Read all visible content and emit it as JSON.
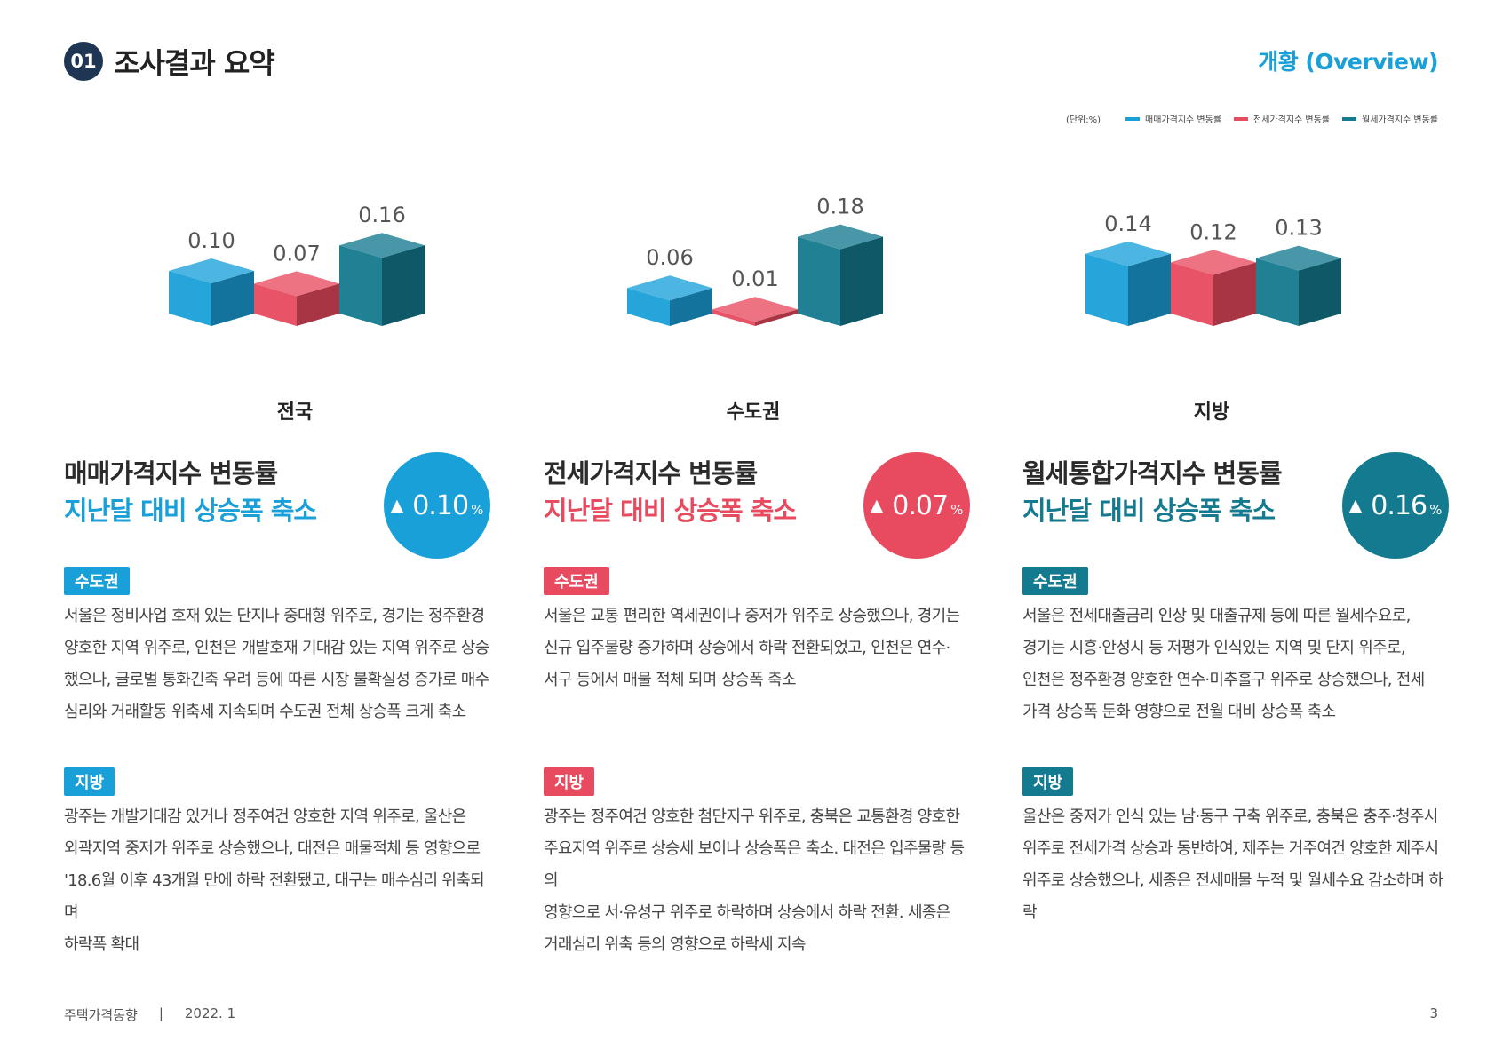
{
  "header": {
    "number": "01",
    "title": "조사결과 요약",
    "overview": "개황 (Overview)"
  },
  "legend": {
    "unit": "(단위:%)",
    "items": [
      {
        "label": "매매가격지수 변동률",
        "color": "#1aa0d8"
      },
      {
        "label": "전세가격지수 변동률",
        "color": "#e84a5f"
      },
      {
        "label": "월세가격지수 변동률",
        "color": "#147a8f"
      }
    ]
  },
  "chart_data": [
    {
      "type": "bar",
      "region": "전국",
      "categories": [
        "매매",
        "전세",
        "월세"
      ],
      "values": [
        0.1,
        0.07,
        0.16
      ],
      "labels": [
        "0.10",
        "0.07",
        "0.16"
      ],
      "colors": [
        "#1aa0d8",
        "#e84a5f",
        "#147a8f"
      ]
    },
    {
      "type": "bar",
      "region": "수도권",
      "categories": [
        "매매",
        "전세",
        "월세"
      ],
      "values": [
        0.06,
        0.01,
        0.18
      ],
      "labels": [
        "0.06",
        "0.01",
        "0.18"
      ],
      "colors": [
        "#1aa0d8",
        "#e84a5f",
        "#147a8f"
      ]
    },
    {
      "type": "bar",
      "region": "지방",
      "categories": [
        "매매",
        "전세",
        "월세"
      ],
      "values": [
        0.14,
        0.12,
        0.13
      ],
      "labels": [
        "0.14",
        "0.12",
        "0.13"
      ],
      "colors": [
        "#1aa0d8",
        "#e84a5f",
        "#147a8f"
      ]
    }
  ],
  "columns": [
    {
      "title": "매매가격지수 변동률",
      "subtitle": "지난달 대비 상승폭 축소",
      "color": "#1aa0d8",
      "arrow": "▲",
      "value": "0.10",
      "unit": "%",
      "sections": [
        {
          "tag": "수도권",
          "lines": [
            "서울은 정비사업 호재 있는 단지나 중대형 위주로, 경기는 정주환경",
            "양호한 지역 위주로, 인천은 개발호재 기대감 있는 지역 위주로 상승",
            "했으나, 글로벌 통화긴축 우려 등에 따른 시장 불확실성 증가로 매수",
            "심리와 거래활동 위축세 지속되며 수도권 전체 상승폭 크게 축소"
          ]
        },
        {
          "tag": "지방",
          "lines": [
            "광주는 개발기대감 있거나 정주여건 양호한 지역 위주로, 울산은",
            "외곽지역 중저가 위주로 상승했으나, 대전은 매물적체 등 영향으로",
            "'18.6월 이후 43개월 만에 하락 전환됐고, 대구는 매수심리 위축되며",
            "하락폭 확대"
          ]
        }
      ]
    },
    {
      "title": "전세가격지수 변동률",
      "subtitle": "지난달 대비 상승폭 축소",
      "color": "#e84a5f",
      "arrow": "▲",
      "value": "0.07",
      "unit": "%",
      "sections": [
        {
          "tag": "수도권",
          "lines": [
            "서울은 교통 편리한 역세권이나 중저가 위주로 상승했으나, 경기는",
            "신규 입주물량 증가하며 상승에서 하락 전환되었고, 인천은 연수·",
            "서구 등에서 매물 적체 되며 상승폭 축소"
          ]
        },
        {
          "tag": "지방",
          "lines": [
            "광주는 정주여건 양호한 첨단지구 위주로, 충북은 교통환경 양호한",
            "주요지역 위주로 상승세 보이나 상승폭은 축소. 대전은 입주물량 등의",
            "영향으로 서·유성구 위주로 하락하며 상승에서 하락 전환. 세종은",
            "거래심리 위축 등의 영향으로 하락세 지속"
          ]
        }
      ]
    },
    {
      "title": "월세통합가격지수 변동률",
      "subtitle": "지난달 대비 상승폭 축소",
      "color": "#147a8f",
      "arrow": "▲",
      "value": "0.16",
      "unit": "%",
      "sections": [
        {
          "tag": "수도권",
          "lines": [
            "서울은 전세대출금리 인상 및 대출규제 등에 따른 월세수요로,",
            "경기는 시흥·안성시 등 저평가 인식있는 지역 및 단지 위주로,",
            "인천은 정주환경 양호한 연수·미추홀구 위주로 상승했으나, 전세",
            "가격 상승폭 둔화 영향으로 전월 대비 상승폭 축소"
          ]
        },
        {
          "tag": "지방",
          "lines": [
            "울산은 중저가 인식 있는 남·동구 구축 위주로, 충북은 충주·청주시",
            "위주로 전세가격 상승과 동반하여, 제주는 거주여건 양호한 제주시",
            "위주로 상승했으나, 세종은 전세매물 누적 및 월세수요 감소하며 하락"
          ]
        }
      ]
    }
  ],
  "footer": {
    "publication": "주택가격동향",
    "separator": "|",
    "date": "2022. 1",
    "page": "3"
  }
}
